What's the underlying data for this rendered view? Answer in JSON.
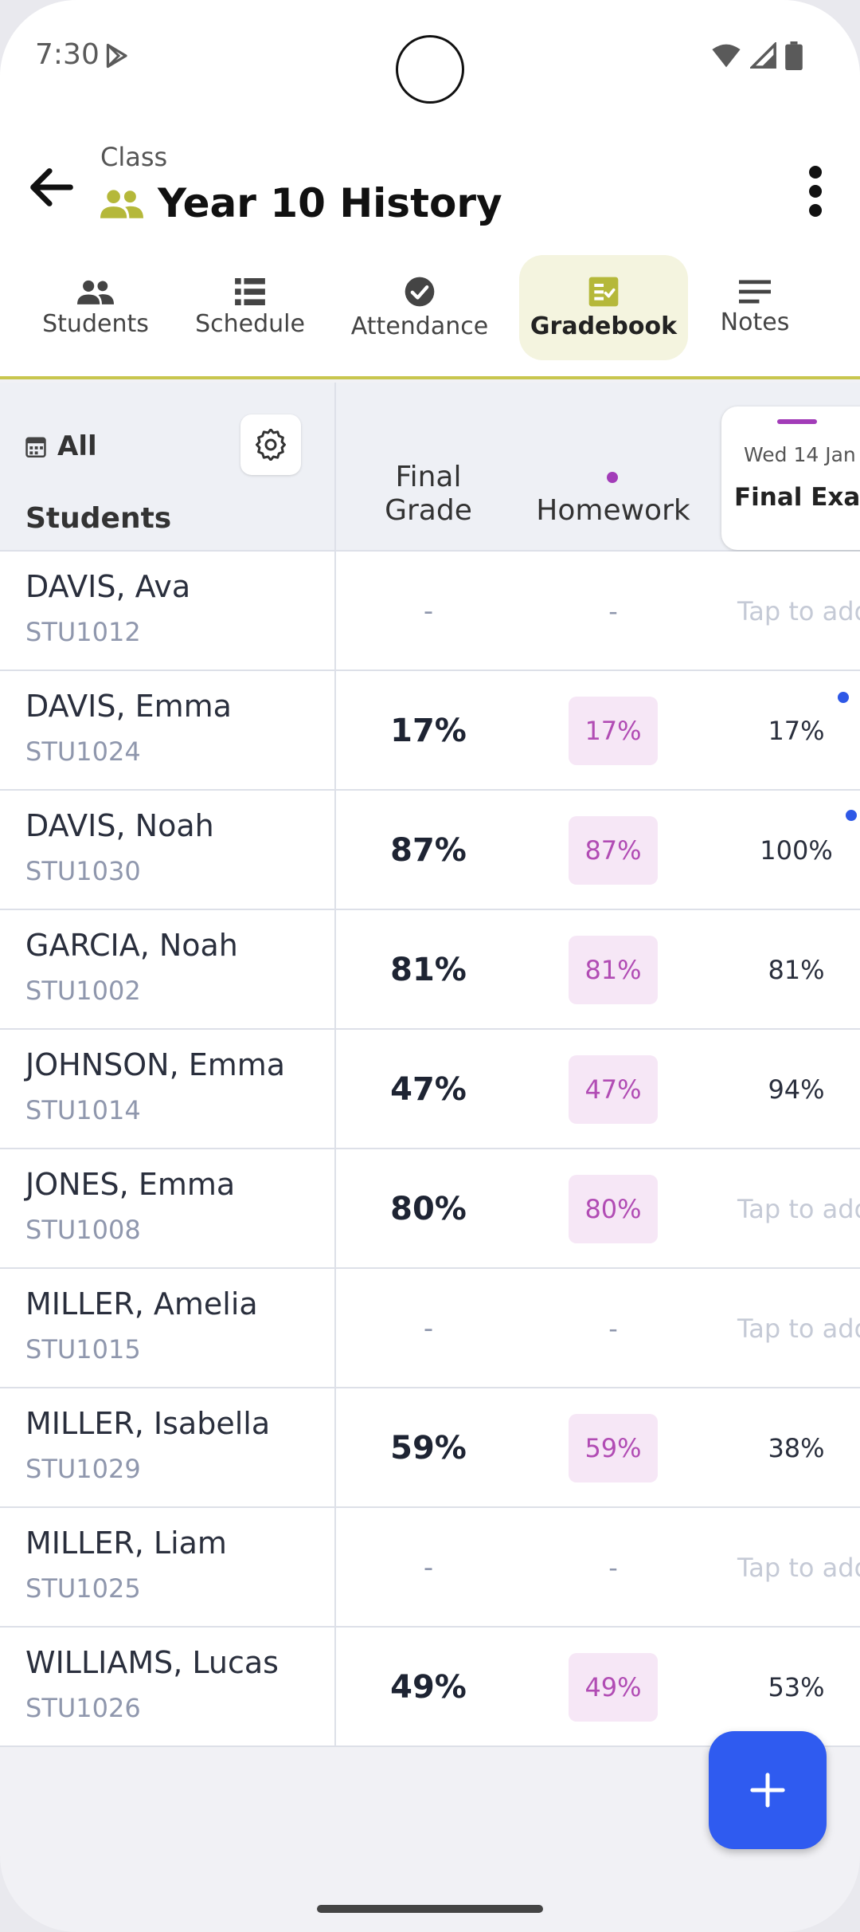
{
  "status_bar": {
    "time": "7:30"
  },
  "header": {
    "context": "Class",
    "title": "Year 10 History"
  },
  "tabs": [
    {
      "label": "Students"
    },
    {
      "label": "Schedule"
    },
    {
      "label": "Attendance"
    },
    {
      "label": "Gradebook",
      "active": true
    },
    {
      "label": "Notes"
    }
  ],
  "table": {
    "filter_label": "All",
    "students_header": "Students",
    "final_grade_header_line1": "Final",
    "final_grade_header_line2": "Grade",
    "homework_header": "Homework",
    "exam_date": "Wed 14 Jan",
    "exam_name": "Final Exam",
    "rows": [
      {
        "name": "DAVIS, Ava",
        "id": "STU1012",
        "final": "-",
        "homework": "-",
        "exam": "Tap to add"
      },
      {
        "name": "DAVIS, Emma",
        "id": "STU1024",
        "final": "17%",
        "homework": "17%",
        "exam": "17%",
        "flag": true
      },
      {
        "name": "DAVIS, Noah",
        "id": "STU1030",
        "final": "87%",
        "homework": "87%",
        "exam": "100%",
        "flag": true
      },
      {
        "name": "GARCIA, Noah",
        "id": "STU1002",
        "final": "81%",
        "homework": "81%",
        "exam": "81%"
      },
      {
        "name": "JOHNSON, Emma",
        "id": "STU1014",
        "final": "47%",
        "homework": "47%",
        "exam": "94%"
      },
      {
        "name": "JONES, Emma",
        "id": "STU1008",
        "final": "80%",
        "homework": "80%",
        "exam": "Tap to add"
      },
      {
        "name": "MILLER, Amelia",
        "id": "STU1015",
        "final": "-",
        "homework": "-",
        "exam": "Tap to add"
      },
      {
        "name": "MILLER, Isabella",
        "id": "STU1029",
        "final": "59%",
        "homework": "59%",
        "exam": "38%"
      },
      {
        "name": "MILLER, Liam",
        "id": "STU1025",
        "final": "-",
        "homework": "-",
        "exam": "Tap to add"
      },
      {
        "name": "WILLIAMS, Lucas",
        "id": "STU1026",
        "final": "49%",
        "homework": "49%",
        "exam": "53%"
      }
    ]
  },
  "colors": {
    "accent": "#2f5bf0",
    "homework": "#b14cb4",
    "tab_active_bg": "#f4f4df",
    "tab_underline": "#c8c64e",
    "class_icon": "#b5b83a"
  }
}
